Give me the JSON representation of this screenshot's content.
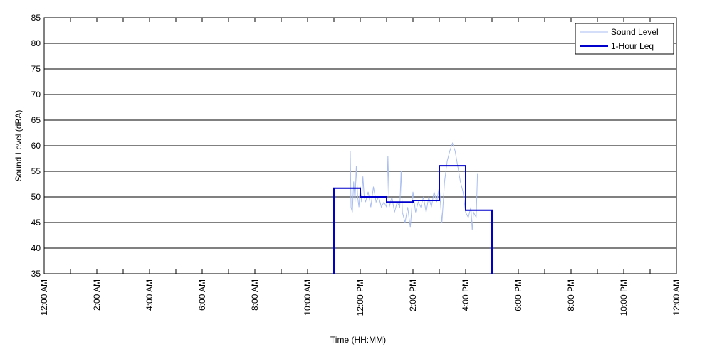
{
  "chart_data": {
    "type": "line",
    "x_label": "Time (HH:MM)",
    "y_label": "Sound Level (dBA)",
    "xlim": [
      0,
      24
    ],
    "ylim": [
      35,
      85
    ],
    "yticks": [
      35,
      40,
      45,
      50,
      55,
      60,
      65,
      70,
      75,
      80,
      85
    ],
    "xticks": [
      {
        "value": 0,
        "label": "12:00 AM"
      },
      {
        "value": 2,
        "label": "2:00 AM"
      },
      {
        "value": 4,
        "label": "4:00 AM"
      },
      {
        "value": 6,
        "label": "6:00 AM"
      },
      {
        "value": 8,
        "label": "8:00 AM"
      },
      {
        "value": 10,
        "label": "10:00 AM"
      },
      {
        "value": 12,
        "label": "12:00 PM"
      },
      {
        "value": 14,
        "label": "2:00 PM"
      },
      {
        "value": 16,
        "label": "4:00 PM"
      },
      {
        "value": 18,
        "label": "6:00 PM"
      },
      {
        "value": 20,
        "label": "8:00 PM"
      },
      {
        "value": 22,
        "label": "10:00 PM"
      },
      {
        "value": 24,
        "label": "12:00 AM"
      }
    ],
    "xminor_ticks": [
      1,
      3,
      5,
      7,
      9,
      11,
      13,
      15,
      17,
      19,
      21,
      23
    ],
    "grid": "y",
    "legend": "upper right",
    "series": [
      {
        "name": "Sound Level",
        "color": "#a9bdf0",
        "width": 1,
        "x": [
          11.62,
          11.65,
          11.7,
          11.75,
          11.8,
          11.85,
          11.9,
          11.95,
          12.0,
          12.05,
          12.1,
          12.15,
          12.2,
          12.3,
          12.4,
          12.5,
          12.6,
          12.7,
          12.8,
          12.9,
          13.0,
          13.05,
          13.1,
          13.2,
          13.3,
          13.4,
          13.5,
          13.55,
          13.6,
          13.7,
          13.8,
          13.9,
          14.0,
          14.1,
          14.2,
          14.3,
          14.4,
          14.5,
          14.6,
          14.7,
          14.8,
          14.9,
          15.0,
          15.1,
          15.2,
          15.3,
          15.4,
          15.5,
          15.6,
          15.7,
          15.8,
          15.9,
          16.0,
          16.1,
          16.2,
          16.25,
          16.3,
          16.4,
          16.45
        ],
        "values": [
          59,
          48,
          47,
          53,
          49,
          56,
          50,
          48,
          52,
          49,
          54,
          50,
          49,
          51,
          48,
          52,
          49,
          50,
          48,
          49,
          48,
          58,
          48,
          50,
          47,
          49,
          48,
          55,
          47,
          45,
          48,
          44,
          51,
          47,
          49,
          48,
          50,
          47,
          50,
          48,
          51,
          49,
          52,
          45,
          53,
          57,
          59,
          60.5,
          59,
          56,
          53,
          51,
          47,
          46,
          48,
          43.5,
          47,
          46,
          54.5
        ]
      },
      {
        "name": "1-Hour Leq",
        "color": "#0000cc",
        "width": 2,
        "x": [
          11,
          11,
          12,
          12,
          13,
          13,
          14,
          14,
          15,
          15,
          16,
          16,
          17,
          17
        ],
        "values": [
          35,
          51.7,
          51.7,
          50,
          50,
          49,
          49,
          49.3,
          49.3,
          56.1,
          56.1,
          47.4,
          47.4,
          35
        ]
      }
    ]
  }
}
